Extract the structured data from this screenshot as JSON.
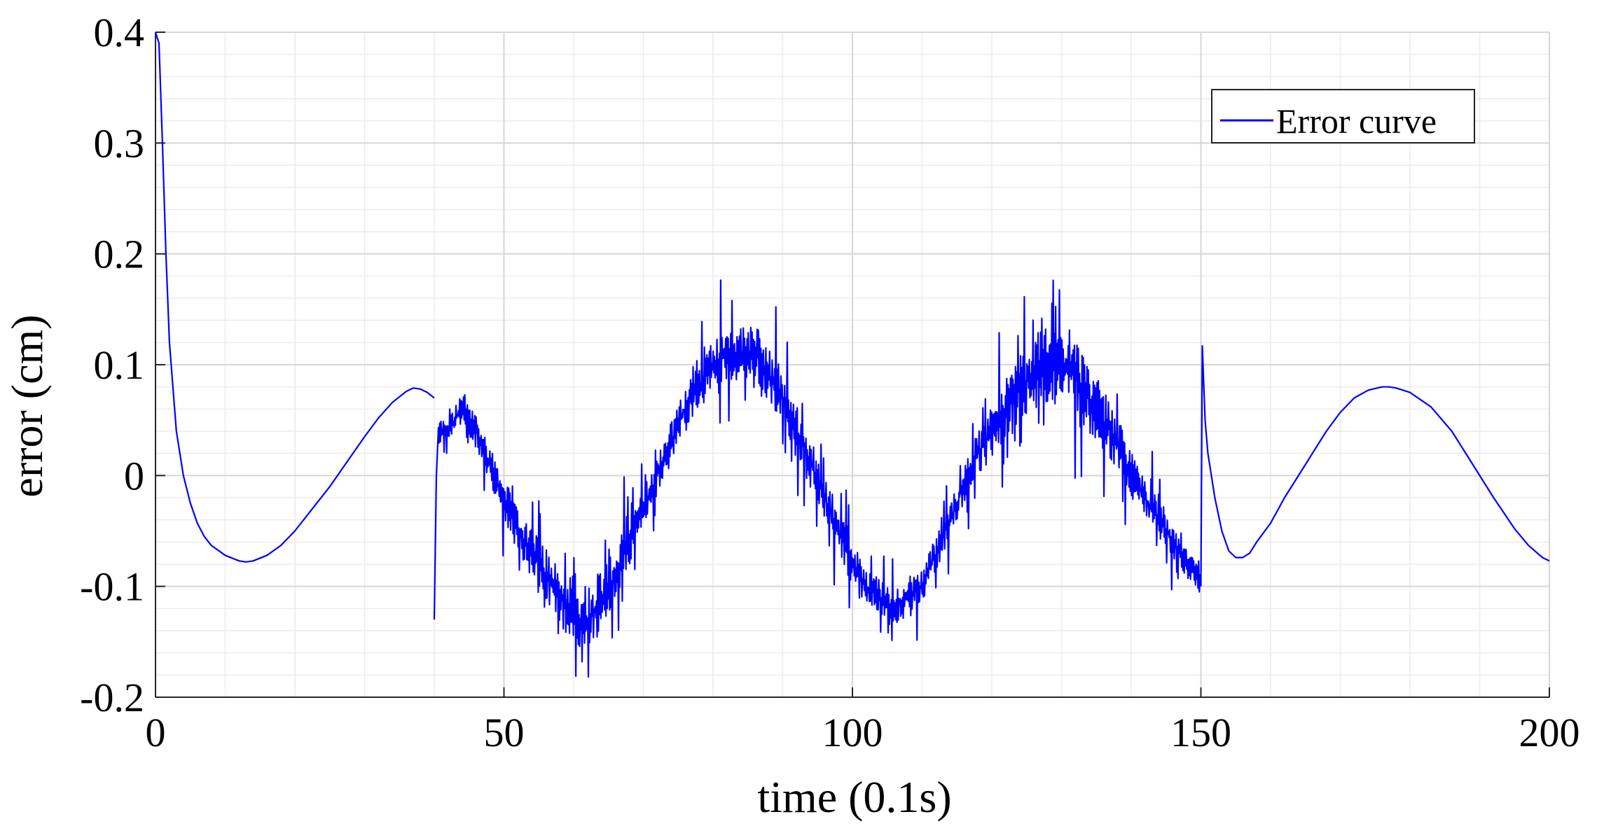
{
  "chart_data": {
    "type": "line",
    "xlabel": "time (0.1s)",
    "ylabel": "error (cm)",
    "xlim": [
      0,
      200
    ],
    "ylim": [
      -0.2,
      0.4
    ],
    "xticks": [
      0,
      50,
      100,
      150,
      200
    ],
    "xtick_labels": [
      "0",
      "50",
      "100",
      "150",
      "200"
    ],
    "yticks": [
      -0.2,
      -0.1,
      0,
      0.1,
      0.2,
      0.3,
      0.4
    ],
    "ytick_labels": [
      "-0.2",
      "-0.1",
      "0",
      "0.1",
      "0.2",
      "0.3",
      "0.4"
    ],
    "minor_grid_step_x": 10,
    "minor_grid_step_y": 0.02,
    "grid": true,
    "legend_position": "top-right",
    "series": [
      {
        "name": "Error curve",
        "color": "#0000ff",
        "segments": [
          {
            "kind": "smooth",
            "points": [
              [
                0,
                0.4
              ],
              [
                0.5,
                0.39
              ],
              [
                1,
                0.3
              ],
              [
                1.5,
                0.2
              ],
              [
                2,
                0.12
              ],
              [
                3,
                0.04
              ],
              [
                4,
                0.0
              ],
              [
                5,
                -0.025
              ],
              [
                6,
                -0.043
              ],
              [
                7,
                -0.055
              ],
              [
                8,
                -0.063
              ],
              [
                10,
                -0.072
              ],
              [
                12,
                -0.077
              ],
              [
                13,
                -0.078
              ],
              [
                14,
                -0.077
              ],
              [
                16,
                -0.072
              ],
              [
                18,
                -0.063
              ],
              [
                20,
                -0.05
              ],
              [
                22,
                -0.034
              ],
              [
                25,
                -0.01
              ],
              [
                28,
                0.017
              ],
              [
                30,
                0.035
              ],
              [
                32,
                0.052
              ],
              [
                34,
                0.066
              ],
              [
                36,
                0.076
              ],
              [
                37,
                0.079
              ],
              [
                38,
                0.078
              ],
              [
                39,
                0.075
              ],
              [
                40,
                0.07
              ]
            ]
          },
          {
            "kind": "noisy",
            "points": [
              [
                40,
                -0.13
              ],
              [
                40.3,
                0.0
              ],
              [
                40.6,
                0.04
              ],
              [
                42,
                0.04
              ],
              [
                44,
                0.06
              ],
              [
                46,
                0.04
              ],
              [
                48,
                0.01
              ],
              [
                50,
                -0.02
              ],
              [
                52,
                -0.05
              ],
              [
                54,
                -0.07
              ],
              [
                56,
                -0.09
              ],
              [
                58,
                -0.11
              ],
              [
                60,
                -0.12
              ],
              [
                61,
                -0.13
              ],
              [
                62,
                -0.13
              ],
              [
                64,
                -0.11
              ],
              [
                66,
                -0.09
              ],
              [
                68,
                -0.06
              ],
              [
                70,
                -0.03
              ],
              [
                72,
                0.0
              ],
              [
                74,
                0.03
              ],
              [
                76,
                0.06
              ],
              [
                78,
                0.08
              ],
              [
                80,
                0.1
              ],
              [
                82,
                0.11
              ],
              [
                84,
                0.11
              ],
              [
                86,
                0.11
              ],
              [
                88,
                0.09
              ],
              [
                90,
                0.07
              ],
              [
                92,
                0.04
              ],
              [
                94,
                0.01
              ],
              [
                96,
                -0.02
              ],
              [
                98,
                -0.05
              ],
              [
                100,
                -0.08
              ],
              [
                102,
                -0.1
              ],
              [
                104,
                -0.11
              ],
              [
                106,
                -0.12
              ],
              [
                108,
                -0.11
              ],
              [
                110,
                -0.1
              ],
              [
                112,
                -0.07
              ],
              [
                114,
                -0.04
              ],
              [
                116,
                -0.01
              ],
              [
                118,
                0.02
              ],
              [
                120,
                0.04
              ],
              [
                122,
                0.06
              ],
              [
                124,
                0.08
              ],
              [
                126,
                0.09
              ],
              [
                128,
                0.1
              ],
              [
                130,
                0.1
              ],
              [
                132,
                0.09
              ],
              [
                134,
                0.07
              ],
              [
                136,
                0.05
              ],
              [
                138,
                0.03
              ],
              [
                140,
                0.0
              ],
              [
                142,
                -0.02
              ],
              [
                144,
                -0.04
              ],
              [
                146,
                -0.06
              ],
              [
                148,
                -0.08
              ],
              [
                149.5,
                -0.09
              ],
              [
                150,
                -0.1
              ]
            ],
            "amplitude": [
              [
                40,
                0.02
              ],
              [
                55,
                0.045
              ],
              [
                62,
                0.065
              ],
              [
                70,
                0.035
              ],
              [
                85,
                0.05
              ],
              [
                95,
                0.045
              ],
              [
                102,
                0.035
              ],
              [
                115,
                0.03
              ],
              [
                129,
                0.08
              ],
              [
                140,
                0.04
              ],
              [
                150,
                0.02
              ]
            ]
          },
          {
            "kind": "smooth",
            "points": [
              [
                150,
                -0.1
              ],
              [
                150.2,
                0.117
              ],
              [
                150.6,
                0.05
              ],
              [
                151,
                0.02
              ],
              [
                152,
                -0.02
              ],
              [
                153,
                -0.05
              ],
              [
                154,
                -0.068
              ],
              [
                155,
                -0.074
              ],
              [
                156,
                -0.074
              ],
              [
                157,
                -0.07
              ],
              [
                158,
                -0.06
              ],
              [
                160,
                -0.043
              ],
              [
                162,
                -0.02
              ],
              [
                165,
                0.01
              ],
              [
                168,
                0.04
              ],
              [
                170,
                0.057
              ],
              [
                172,
                0.07
              ],
              [
                174,
                0.077
              ],
              [
                176,
                0.08
              ],
              [
                177,
                0.08
              ],
              [
                178,
                0.079
              ],
              [
                180,
                0.075
              ],
              [
                183,
                0.062
              ],
              [
                186,
                0.04
              ],
              [
                189,
                0.01
              ],
              [
                192,
                -0.02
              ],
              [
                195,
                -0.048
              ],
              [
                197,
                -0.063
              ],
              [
                199,
                -0.074
              ],
              [
                200,
                -0.077
              ]
            ]
          }
        ]
      }
    ]
  }
}
